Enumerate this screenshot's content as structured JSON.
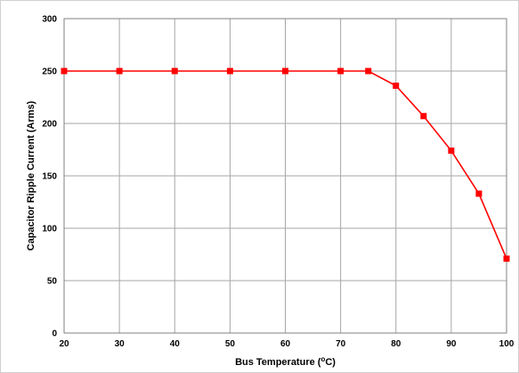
{
  "chart_data": {
    "type": "line",
    "title": "",
    "xlabel_prefix": "Bus Temperature (",
    "xlabel_superscript": "o",
    "xlabel_suffix": "C)",
    "ylabel": "Capacitor Ripple Current (Arms)",
    "xlim": [
      20,
      100
    ],
    "ylim": [
      0,
      300
    ],
    "x_ticks": [
      20,
      30,
      40,
      50,
      60,
      70,
      80,
      90,
      100
    ],
    "y_ticks": [
      0,
      50,
      100,
      150,
      200,
      250,
      300
    ],
    "grid": true,
    "legend": "none",
    "series": [
      {
        "color": "#ff0000",
        "marker": "square",
        "x": [
          20,
          30,
          40,
          50,
          60,
          70,
          75,
          80,
          85,
          90,
          95,
          100
        ],
        "y": [
          250,
          250,
          250,
          250,
          250,
          250,
          250,
          236,
          207,
          174,
          133,
          71
        ]
      }
    ]
  }
}
